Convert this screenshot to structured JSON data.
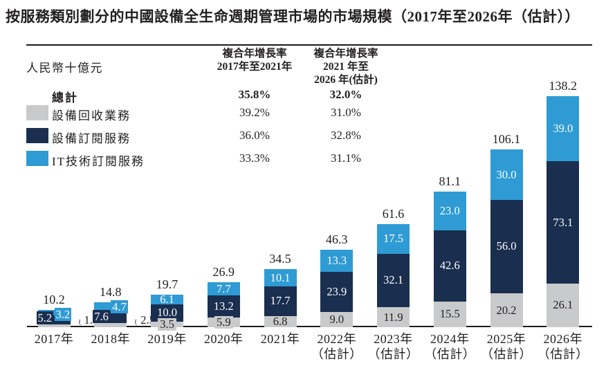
{
  "title": "按服務類別劃分的中國設備全生命週期管理市場的市場規模（2017年至2026年（估計））",
  "unit_label": "人民幣十億元",
  "colors": {
    "recycling": "#c9cacb",
    "equipment": "#1a2f4f",
    "it": "#2f9bd4",
    "text": "#231f20"
  },
  "cagr_table": {
    "col1_header_line1": "複合年增長率",
    "col1_header_line2": "2017年至2021年",
    "col2_header_line1": "複合年增長率",
    "col2_header_line2": "2021 年至",
    "col2_header_line3": "2026 年(估計)",
    "rows": [
      {
        "label": "總計",
        "cagr1": "35.8%",
        "cagr2": "32.0%",
        "swatch": null
      },
      {
        "label": "設備回收業務",
        "cagr1": "39.2%",
        "cagr2": "31.0%",
        "swatch": "recycling"
      },
      {
        "label": "設備訂閱服務",
        "cagr1": "36.0%",
        "cagr2": "32.8%",
        "swatch": "equipment"
      },
      {
        "label": "IT技術訂閱服務",
        "cagr1": "33.3%",
        "cagr2": "31.1%",
        "swatch": "it"
      }
    ]
  },
  "chart_data": {
    "type": "bar",
    "stacked": true,
    "title": "按服務類別劃分的中國設備全生命週期管理市場的市場規模（2017年至2026年（估計））",
    "ylabel": "人民幣十億元",
    "ylim": [
      0,
      140
    ],
    "grid": false,
    "legend_position": "top-left",
    "categories": [
      [
        "2017年"
      ],
      [
        "2018年"
      ],
      [
        "2019年"
      ],
      [
        "2020年"
      ],
      [
        "2021年"
      ],
      [
        "2022年",
        "（估計）"
      ],
      [
        "2023年",
        "（估計）"
      ],
      [
        "2024年",
        "（估計）"
      ],
      [
        "2025年",
        "（估計）"
      ],
      [
        "2026年",
        "（估計）"
      ]
    ],
    "series": [
      {
        "name": "設備回收業務",
        "key": "recycling",
        "cagr_2017_2021": "39.2%",
        "cagr_2021_2026": "31.0%",
        "values": [
          1.8,
          2.5,
          3.5,
          5.9,
          6.8,
          9.0,
          11.9,
          15.5,
          20.2,
          26.1
        ],
        "labels": [
          "1.8",
          "2.5",
          "3.5",
          "5.9",
          "6.8",
          "9.0",
          "11.9",
          "15.5",
          "20.2",
          "26.1"
        ]
      },
      {
        "name": "設備訂閱服務",
        "key": "equipment",
        "cagr_2017_2021": "36.0%",
        "cagr_2021_2026": "32.8%",
        "values": [
          5.2,
          7.6,
          10.0,
          13.2,
          17.7,
          23.9,
          32.1,
          42.6,
          56.0,
          73.1
        ],
        "labels": [
          "5.2",
          "7.6",
          "10.0",
          "13.2",
          "17.7",
          "23.9",
          "32.1",
          "42.6",
          "56.0",
          "73.1"
        ]
      },
      {
        "name": "IT技術訂閱服務",
        "key": "it",
        "cagr_2017_2021": "33.3%",
        "cagr_2021_2026": "31.1%",
        "values": [
          3.2,
          4.7,
          6.1,
          7.7,
          10.1,
          13.3,
          17.5,
          23.0,
          30.0,
          39.0
        ],
        "labels": [
          "3.2",
          "4.7",
          "6.1",
          "7.7",
          "10.1",
          "13.3",
          "17.5",
          "23.0",
          "30.0",
          "39.0"
        ]
      }
    ],
    "totals": [
      10.2,
      14.8,
      19.7,
      26.9,
      34.5,
      46.3,
      61.6,
      81.1,
      106.1,
      138.2
    ],
    "total_labels": [
      "10.2",
      "14.8",
      "19.7",
      "26.9",
      "34.5",
      "46.3",
      "61.6",
      "81.1",
      "106.1",
      "138.2"
    ],
    "total_cagr_2017_2021": "35.8%",
    "total_cagr_2021_2026": "32.0%"
  }
}
